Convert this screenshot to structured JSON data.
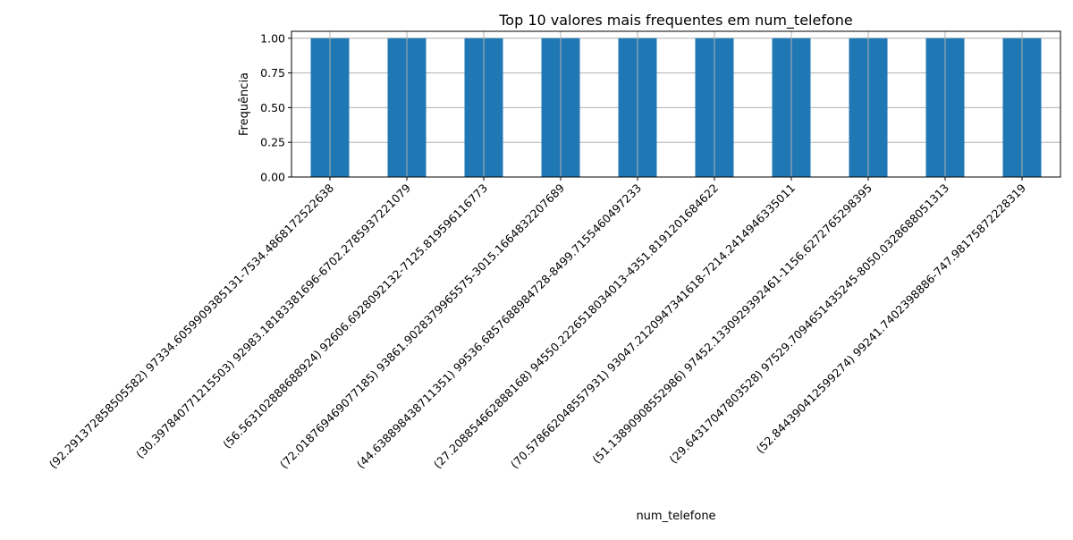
{
  "chart_data": {
    "type": "bar",
    "title": "Top 10 valores mais frequentes em num_telefone",
    "xlabel": "num_telefone",
    "ylabel": "Frequência",
    "ylim": [
      0,
      1.05
    ],
    "yticks": [
      0.0,
      0.25,
      0.5,
      0.75,
      1.0
    ],
    "ytick_labels": [
      "0.00",
      "0.25",
      "0.50",
      "0.75",
      "1.00"
    ],
    "grid": true,
    "categories": [
      "(92.29137285850558​2) 97334.60599093851​31-7534.486817252263​8",
      "(30.39784077121550​3) 92983.18183381696-6702.27859372210​79",
      "(56.56310288868892​4) 92606.69280921​32-7125.8195961167​73",
      "(72.01876946907718​5) 93861.90283799655​75-3015.16648322076​89",
      "(44.63889843871135​1) 99536.68576889847​28-8499.71554604972​33",
      "(27.20885466288816​8) 94550.22265180340​13-4351.81912016846​22",
      "(70.57866204855793​1) 93047.21209473416​18-7214.24149463350​11",
      "(51.13890908552986) 97452.13309293924​61-1156.62727652983​95",
      "(29.64317047803528) 97529.70946514352​45-8050.03286880513​13",
      "(52.84439041259927​4) 99241.74023988​86-747.98175872228319"
    ],
    "values": [
      1,
      1,
      1,
      1,
      1,
      1,
      1,
      1,
      1,
      1
    ],
    "bar_color": "#1f77b4",
    "grid_color": "#b0b0b0"
  }
}
